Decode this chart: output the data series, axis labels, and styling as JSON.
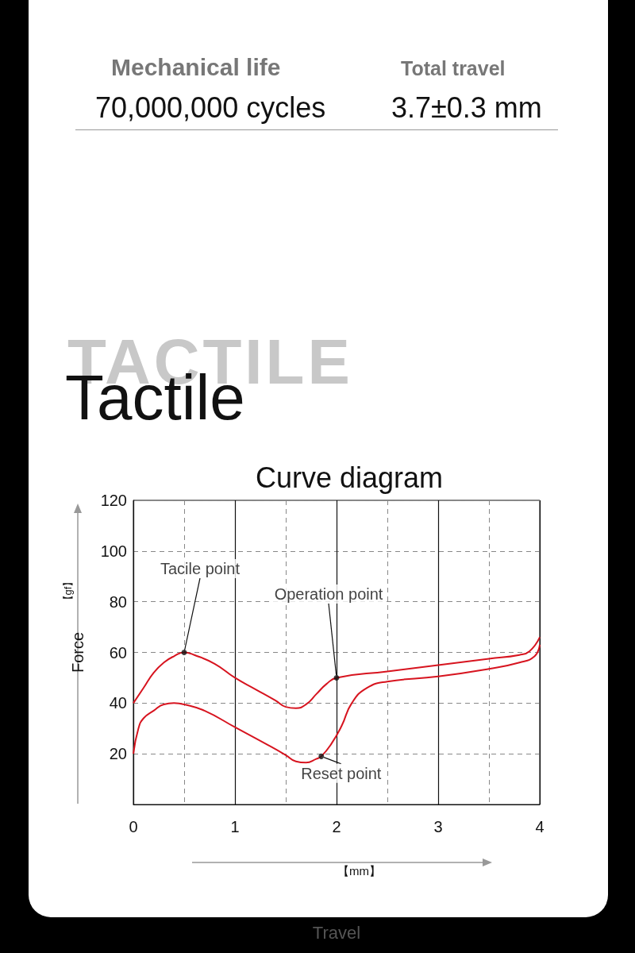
{
  "chart_data": {
    "type": "line",
    "title": "Curve diagram",
    "xlabel": "Travel",
    "ylabel": "Force",
    "xlim": [
      0,
      4
    ],
    "xticks": [
      0,
      1,
      2,
      3,
      4
    ],
    "ylim": [
      0,
      120
    ],
    "yticks": [
      {
        "value": 0,
        "label": null
      },
      20,
      40,
      60,
      80,
      100,
      120
    ],
    "grid": true,
    "marker": "none",
    "line_style": "solid",
    "series": [
      {
        "color": "#d7141f",
        "x": [
          0,
          0.1,
          0.2,
          0.3,
          0.4,
          0.5,
          0.6,
          0.8,
          1.0,
          1.2,
          1.4,
          1.5,
          1.6,
          1.7,
          1.8,
          1.9,
          2.0,
          2.5,
          3.0,
          3.5,
          3.8,
          3.9,
          4.0
        ],
        "values": [
          40,
          46,
          52,
          56,
          58.5,
          60,
          59,
          55.5,
          50,
          45.5,
          41,
          38.5,
          38,
          39.5,
          43.5,
          47.5,
          50,
          52.5,
          55,
          57.5,
          59,
          60.5,
          66
        ]
      },
      {
        "color": "#d7141f",
        "x": [
          0,
          0.05,
          0.1,
          0.2,
          0.3,
          0.4,
          0.5,
          0.7,
          1.0,
          1.3,
          1.5,
          1.6,
          1.7,
          1.8,
          1.85,
          1.95,
          2.05,
          2.15,
          2.3,
          2.5,
          3.0,
          3.5,
          3.8,
          3.95,
          4.0
        ],
        "values": [
          20,
          30,
          34,
          37,
          39.5,
          40,
          39.5,
          37,
          30.5,
          24,
          19.5,
          17,
          16.5,
          18,
          19,
          24,
          31,
          40,
          46,
          48.5,
          50.5,
          53.5,
          56,
          58.5,
          63
        ]
      }
    ],
    "annotations": [
      {
        "text": "Tacile point",
        "x": 0.5,
        "y": 60
      },
      {
        "text": "Operation point",
        "x": 2.0,
        "y": 50
      },
      {
        "text": "Reset point",
        "x": 1.85,
        "y": 19
      },
      "Mechanical life",
      "70,000,000 cycles",
      "Total travel",
      "3.7±0.3 mm",
      "TACTILE",
      "Tactile",
      "【gf】",
      "【mm】"
    ]
  }
}
